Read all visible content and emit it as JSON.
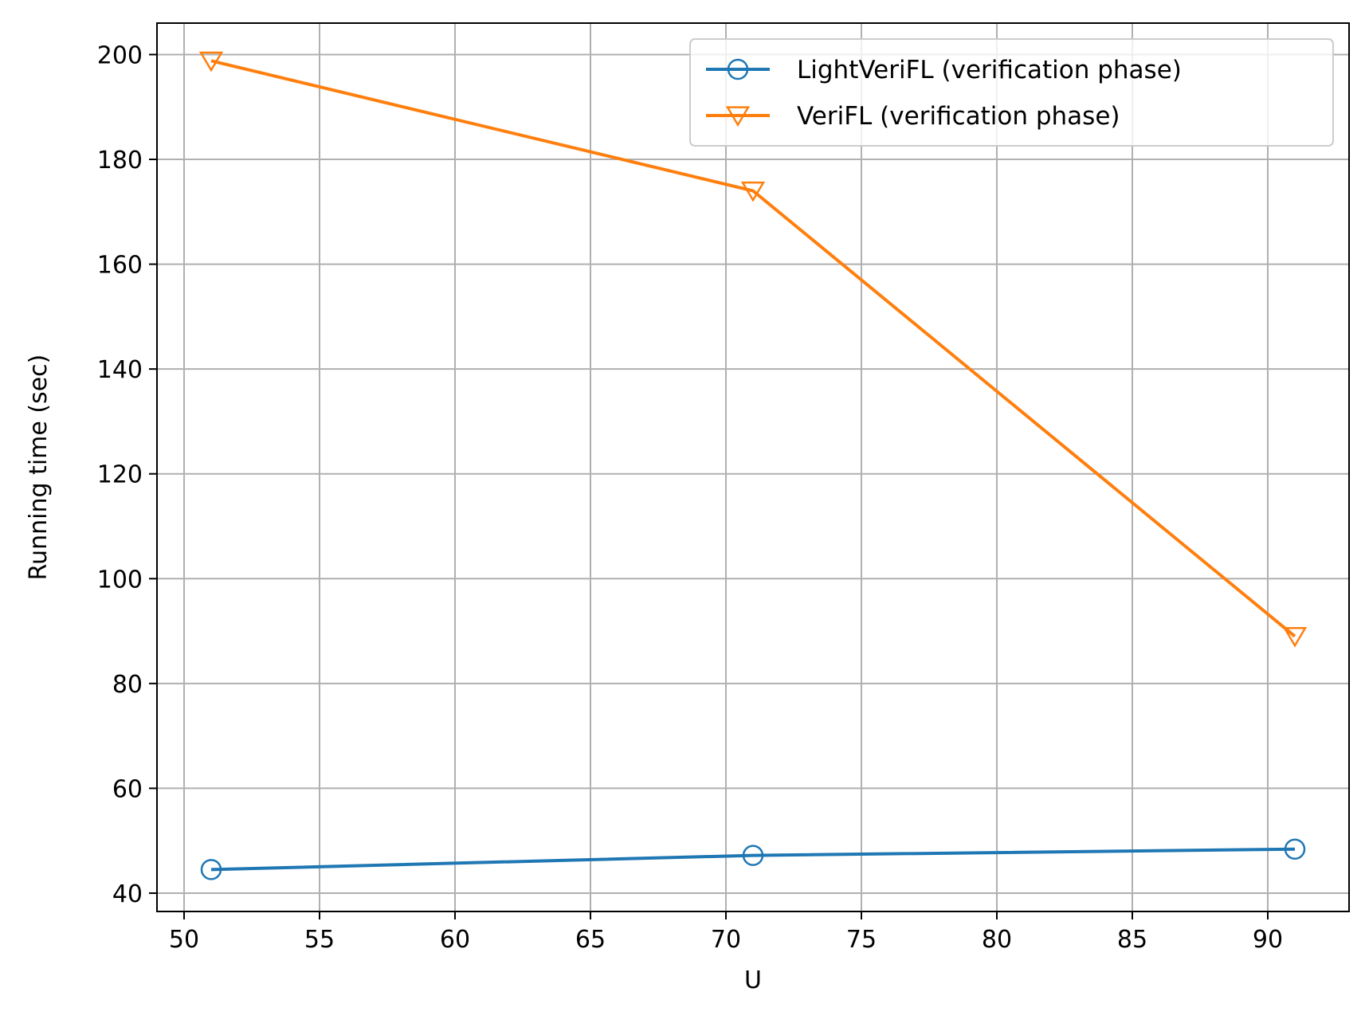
{
  "chart_data": {
    "type": "line",
    "xlabel": "U",
    "ylabel": "Running time (sec)",
    "xlim": [
      49,
      93
    ],
    "ylim": [
      36.5,
      206
    ],
    "xticks": [
      50,
      55,
      60,
      65,
      70,
      75,
      80,
      85,
      90
    ],
    "yticks": [
      40,
      60,
      80,
      100,
      120,
      140,
      160,
      180,
      200
    ],
    "grid": true,
    "legend_position": "top-right",
    "series": [
      {
        "name": "LightVeriFL (verification phase)",
        "color": "#1f77b4",
        "marker": "circle",
        "x": [
          51,
          71,
          91
        ],
        "y": [
          44.5,
          47.2,
          48.4
        ]
      },
      {
        "name": "VeriFL (verification phase)",
        "color": "#ff7f0e",
        "marker": "triangle-down",
        "x": [
          51,
          71,
          91
        ],
        "y": [
          198.8,
          174.0,
          89.0
        ]
      }
    ]
  }
}
